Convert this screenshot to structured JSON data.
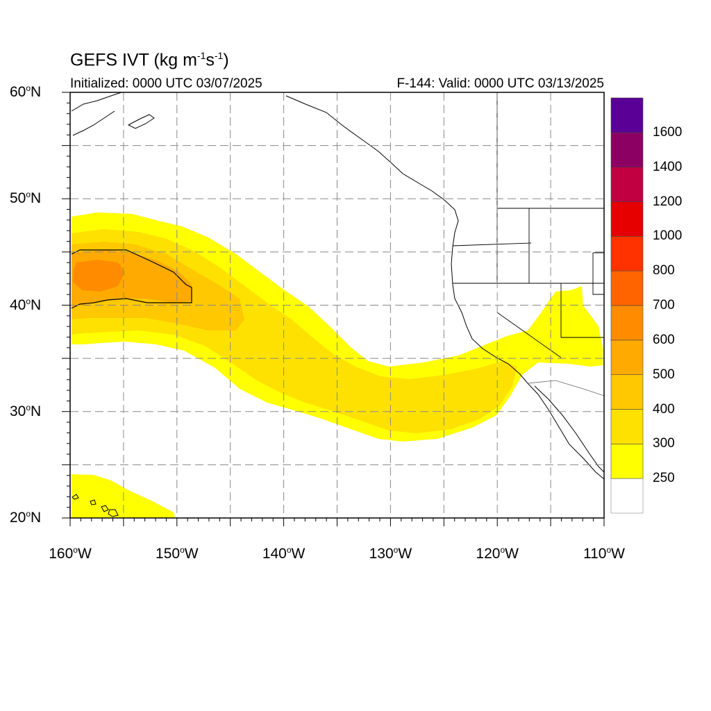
{
  "title": {
    "main": "GEFS IVT (kg m",
    "exp1": "-1",
    "mid": "s",
    "exp2": "-1",
    "end": ")"
  },
  "subtitle_left": "Initialized: 0000 UTC 03/07/2025",
  "subtitle_right": "F-144: Valid: 0000 UTC 03/13/2025",
  "axes": {
    "lat_labels": [
      {
        "lat": 60,
        "text": "60",
        "deg": "o",
        "hemi": "N"
      },
      {
        "lat": 50,
        "text": "50",
        "deg": "o",
        "hemi": "N"
      },
      {
        "lat": 40,
        "text": "40",
        "deg": "o",
        "hemi": "N"
      },
      {
        "lat": 30,
        "text": "30",
        "deg": "o",
        "hemi": "N"
      },
      {
        "lat": 20,
        "text": "20",
        "deg": "o",
        "hemi": "N"
      }
    ],
    "lon_labels": [
      {
        "lon": -160,
        "text": "160",
        "deg": "o",
        "hemi": "W"
      },
      {
        "lon": -150,
        "text": "150",
        "deg": "o",
        "hemi": "W"
      },
      {
        "lon": -140,
        "text": "140",
        "deg": "o",
        "hemi": "W"
      },
      {
        "lon": -130,
        "text": "130",
        "deg": "o",
        "hemi": "W"
      },
      {
        "lon": -120,
        "text": "120",
        "deg": "o",
        "hemi": "W"
      },
      {
        "lon": -110,
        "text": "110",
        "deg": "o",
        "hemi": "W"
      }
    ],
    "lon_range": [
      -160,
      -110
    ],
    "lat_range": [
      20,
      60
    ],
    "grid": "dashed every 5 degrees"
  },
  "colorbar": {
    "levels": [
      "250",
      "300",
      "400",
      "500",
      "600",
      "700",
      "800",
      "1000",
      "1200",
      "1400",
      "1600"
    ],
    "colors": [
      "#ffffff",
      "#ffff00",
      "#ffe100",
      "#ffc800",
      "#ffaa00",
      "#ff8c00",
      "#ff6400",
      "#ff3200",
      "#e60000",
      "#c00040",
      "#8c0064",
      "#5a0096"
    ]
  }
}
